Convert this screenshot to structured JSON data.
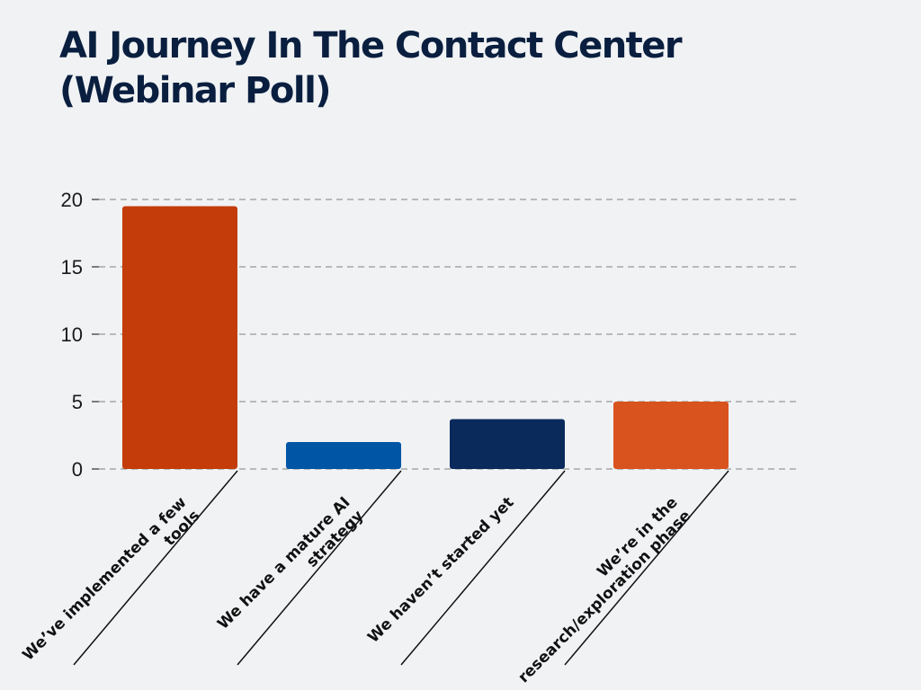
{
  "title_lines": [
    "AI Journey In The Contact Center",
    "(Webinar Poll)"
  ],
  "chart_data": {
    "type": "bar",
    "title": "AI Journey In The Contact Center (Webinar Poll)",
    "categories": [
      [
        "We’ve implemented a few",
        "tools"
      ],
      [
        "We have a mature AI",
        "strategy"
      ],
      [
        "We haven’t started yet"
      ],
      [
        "We’re in the",
        "research/exploration phase"
      ]
    ],
    "values": [
      19.5,
      2,
      3.7,
      5
    ],
    "colors": [
      "#c33c0a",
      "#0055a4",
      "#0a2a5c",
      "#d9531f"
    ],
    "yticks": [
      0,
      5,
      10,
      15,
      20
    ],
    "ylim": [
      0,
      20
    ],
    "grid": true,
    "xlabel": "",
    "ylabel": ""
  }
}
